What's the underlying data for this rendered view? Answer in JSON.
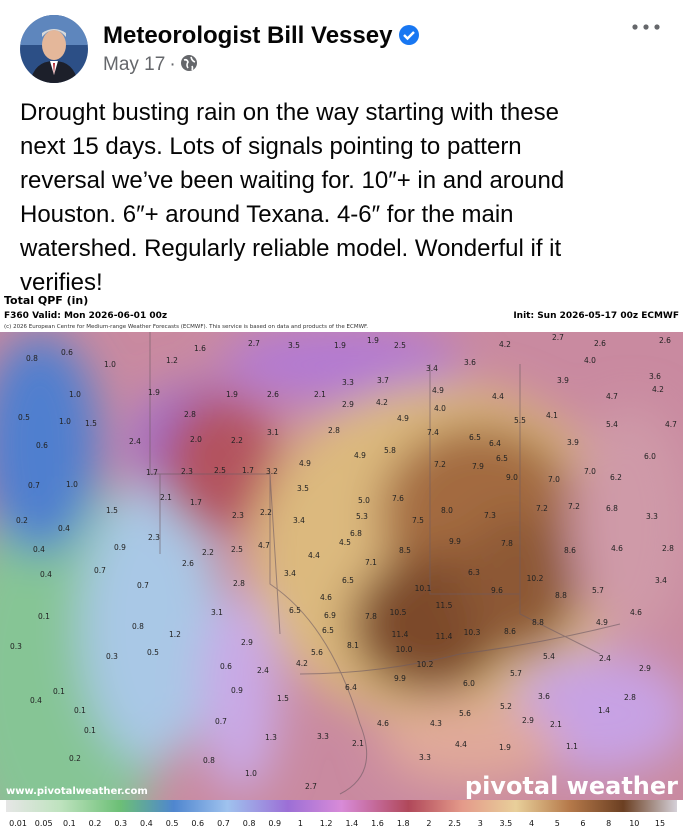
{
  "post": {
    "author": "Meteorologist Bill Vessey",
    "date": "May 17",
    "separator": "·",
    "text_lines": [
      "Drought busting rain on the way starting with these",
      "next 15 days. Lots of signals pointing to pattern",
      "reversal we’ve been waiting for. 10″+ in and around",
      "Houston. 6″+ around Texana. 4-6″ for the main",
      "watershed. Regularly reliable model. Wonderful if it",
      "verifies!"
    ]
  },
  "map": {
    "title": "Total QPF (in)",
    "valid": "F360 Valid: Mon 2026-06-01 00z",
    "init": "Init: Sun 2026-05-17 00z ECMWF",
    "copyright": "(c) 2026 European Centre for Medium-range Weather Forecasts (ECMWF). This service is based on data and products of the ECMWF.",
    "website": "www.pivotalweather.com",
    "logo": "pivotal weather",
    "scale": [
      "0.01",
      "0.05",
      "0.1",
      "0.2",
      "0.3",
      "0.4",
      "0.5",
      "0.6",
      "0.7",
      "0.8",
      "0.9",
      "1",
      "1.2",
      "1.4",
      "1.6",
      "1.8",
      "2",
      "2.5",
      "3",
      "3.5",
      "4",
      "5",
      "6",
      "8",
      "10",
      "15"
    ],
    "labels": [
      "0.8",
      "0.6",
      "1.0",
      "1.2",
      "1.6",
      "2.7",
      "3.5",
      "1.9",
      "1.9",
      "2.5",
      "4.2",
      "2.7",
      "2.6",
      "2.6",
      "1.0",
      "1.9",
      "1.9",
      "2.6",
      "2.1",
      "3.3",
      "3.7",
      "3.4",
      "3.6",
      "3.9",
      "4.0",
      "3.6",
      "4.2",
      "0.5",
      "1.0",
      "1.5",
      "2.8",
      "2.9",
      "4.2",
      "4.9",
      "4.0",
      "4.4",
      "4.7",
      "0.6",
      "2.4",
      "2.0",
      "2.2",
      "3.1",
      "2.8",
      "4.9",
      "7.4",
      "6.5",
      "6.4",
      "5.5",
      "4.1",
      "5.4",
      "4.7",
      "3.9",
      "5.8",
      "4.9",
      "4.9",
      "1.7",
      "2.3",
      "2.5",
      "1.7",
      "3.2",
      "7.2",
      "7.9",
      "6.5",
      "9.0",
      "7.0",
      "7.0",
      "6.2",
      "6.0",
      "0.7",
      "1.0",
      "3.5",
      "5.0",
      "7.6",
      "2.1",
      "1.7",
      "1.5",
      "2.3",
      "2.2",
      "5.3",
      "7.5",
      "8.0",
      "7.3",
      "7.2",
      "7.2",
      "6.8",
      "3.3",
      "0.2",
      "0.4",
      "3.4",
      "6.8",
      "2.3",
      "4.5",
      "0.9",
      "2.2",
      "2.5",
      "4.7",
      "8.5",
      "9.9",
      "7.8",
      "8.6",
      "4.6",
      "2.8",
      "0.4",
      "4.4",
      "7.1",
      "2.6",
      "0.7",
      "0.4",
      "3.4",
      "6.3",
      "10.2",
      "5.7",
      "3.4",
      "0.7",
      "2.8",
      "6.5",
      "10.1",
      "9.6",
      "8.8",
      "4.6",
      "0.1",
      "3.1",
      "6.5",
      "6.9",
      "7.8",
      "10.5",
      "11.5",
      "8.8",
      "4.9",
      "4.6",
      "0.8",
      "6.5",
      "1.2",
      "11.4",
      "11.4",
      "10.3",
      "8.6",
      "8.1",
      "0.3",
      "2.9",
      "10.0",
      "0.3",
      "0.5",
      "5.6",
      "5.4",
      "2.4",
      "2.9",
      "4.2",
      "0.6",
      "2.4",
      "10.2",
      "5.7",
      "9.9",
      "6.0",
      "0.9",
      "6.4",
      "0.1",
      "2.8",
      "1.5",
      "3.6",
      "0.4",
      "5.2",
      "1.4",
      "0.1",
      "5.6",
      "0.7",
      "4.6",
      "4.3",
      "2.9",
      "2.1",
      "0.1",
      "1.3",
      "3.3",
      "4.4",
      "2.1",
      "1.1",
      "1.9",
      "0.2",
      "0.8",
      "3.3",
      "1.0",
      "2.7"
    ]
  }
}
